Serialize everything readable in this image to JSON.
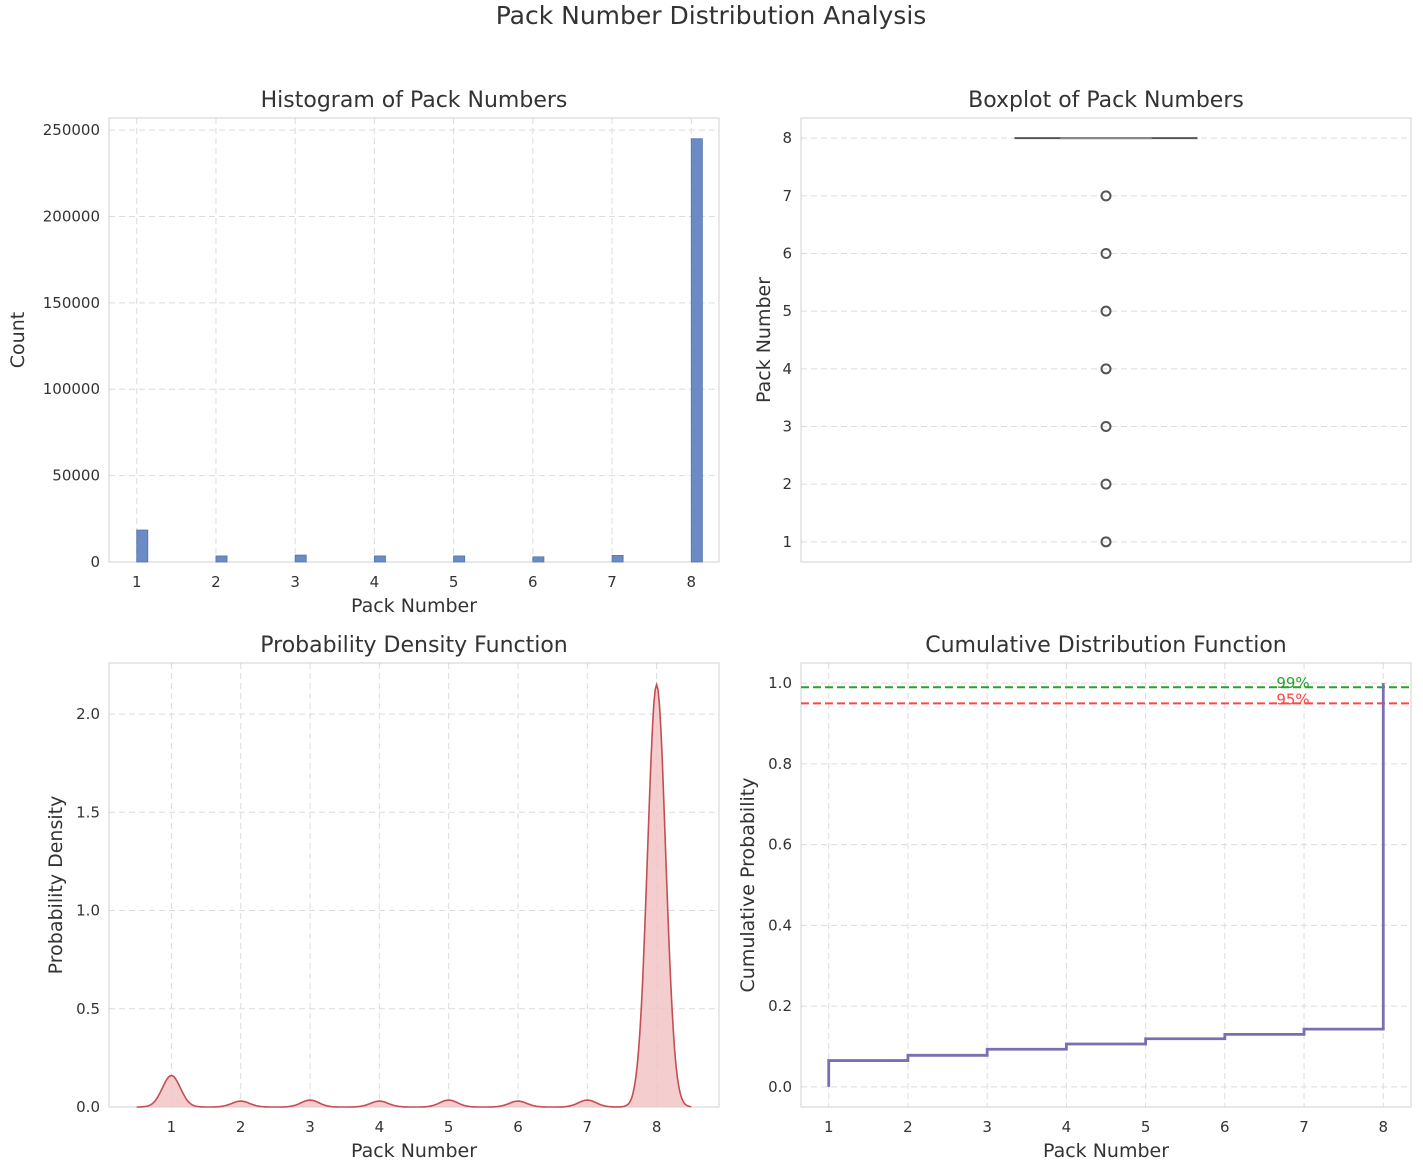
{
  "figure": {
    "suptitle": "Pack Number Distribution Analysis"
  },
  "chart_data": [
    {
      "type": "bar",
      "title": "Histogram of Pack Numbers",
      "xlabel": "Pack Number",
      "ylabel": "Count",
      "x_ticks": [
        1,
        2,
        3,
        4,
        5,
        6,
        7,
        8
      ],
      "y_ticks": [
        0,
        50000,
        100000,
        150000,
        200000,
        250000
      ],
      "xlim": [
        0.65,
        8.35
      ],
      "ylim": [
        0,
        257000
      ],
      "grid": true,
      "categories": [
        1,
        2,
        3,
        4,
        5,
        6,
        7,
        8
      ],
      "values": [
        18500,
        3500,
        4000,
        3500,
        3500,
        3000,
        3800,
        245000
      ],
      "color": "#6b8bc4"
    },
    {
      "type": "boxplot",
      "title": "Boxplot of Pack Numbers",
      "xlabel": "",
      "ylabel": "Pack Number",
      "y_ticks": [
        1,
        2,
        3,
        4,
        5,
        6,
        7,
        8
      ],
      "ylim": [
        0.65,
        8.35
      ],
      "grid": true,
      "box": {
        "min": 8,
        "q1": 8,
        "median": 8,
        "q3": 8,
        "max": 8
      },
      "outliers": [
        1,
        2,
        3,
        4,
        5,
        6,
        7
      ],
      "color": "#555555"
    },
    {
      "type": "area",
      "title": "Probability Density Function",
      "xlabel": "Pack Number",
      "ylabel": "Probability Density",
      "x_ticks": [
        1,
        2,
        3,
        4,
        5,
        6,
        7,
        8
      ],
      "y_ticks": [
        0.0,
        0.5,
        1.0,
        1.5,
        2.0
      ],
      "y_tick_labels": [
        "0.0",
        "0.5",
        "1.0",
        "1.5",
        "2.0"
      ],
      "xlim": [
        0.1,
        8.9
      ],
      "ylim": [
        0,
        2.26
      ],
      "x_range": [
        0.5,
        8.5
      ],
      "grid": true,
      "peaks": [
        {
          "x": 1,
          "height": 0.16
        },
        {
          "x": 2,
          "height": 0.03
        },
        {
          "x": 3,
          "height": 0.035
        },
        {
          "x": 4,
          "height": 0.03
        },
        {
          "x": 5,
          "height": 0.035
        },
        {
          "x": 6,
          "height": 0.03
        },
        {
          "x": 7,
          "height": 0.035
        },
        {
          "x": 8,
          "height": 2.15
        }
      ],
      "bandwidth": 0.13,
      "line_color": "#c44e52",
      "fill_color": "#f2c4c6"
    },
    {
      "type": "line",
      "title": "Cumulative Distribution Function",
      "xlabel": "Pack Number",
      "ylabel": "Cumulative Probability",
      "x_ticks": [
        1,
        2,
        3,
        4,
        5,
        6,
        7,
        8
      ],
      "y_ticks": [
        0.0,
        0.2,
        0.4,
        0.6,
        0.8,
        1.0
      ],
      "y_tick_labels": [
        "0.0",
        "0.2",
        "0.4",
        "0.6",
        "0.8",
        "1.0"
      ],
      "xlim": [
        0.65,
        8.35
      ],
      "ylim": [
        -0.05,
        1.05
      ],
      "grid": true,
      "steps": [
        {
          "x": 1,
          "y": 0.065
        },
        {
          "x": 2,
          "y": 0.078
        },
        {
          "x": 3,
          "y": 0.093
        },
        {
          "x": 4,
          "y": 0.106
        },
        {
          "x": 5,
          "y": 0.119
        },
        {
          "x": 6,
          "y": 0.13
        },
        {
          "x": 7,
          "y": 0.143
        },
        {
          "x": 8,
          "y": 1.0
        }
      ],
      "line_color": "#7a6fb0",
      "reference_lines": [
        {
          "y": 0.99,
          "label": "99%",
          "label_x": 6.65,
          "color": "#2ca02c"
        },
        {
          "y": 0.95,
          "label": "95%",
          "label_x": 6.65,
          "color": "#ff4444"
        }
      ]
    }
  ]
}
